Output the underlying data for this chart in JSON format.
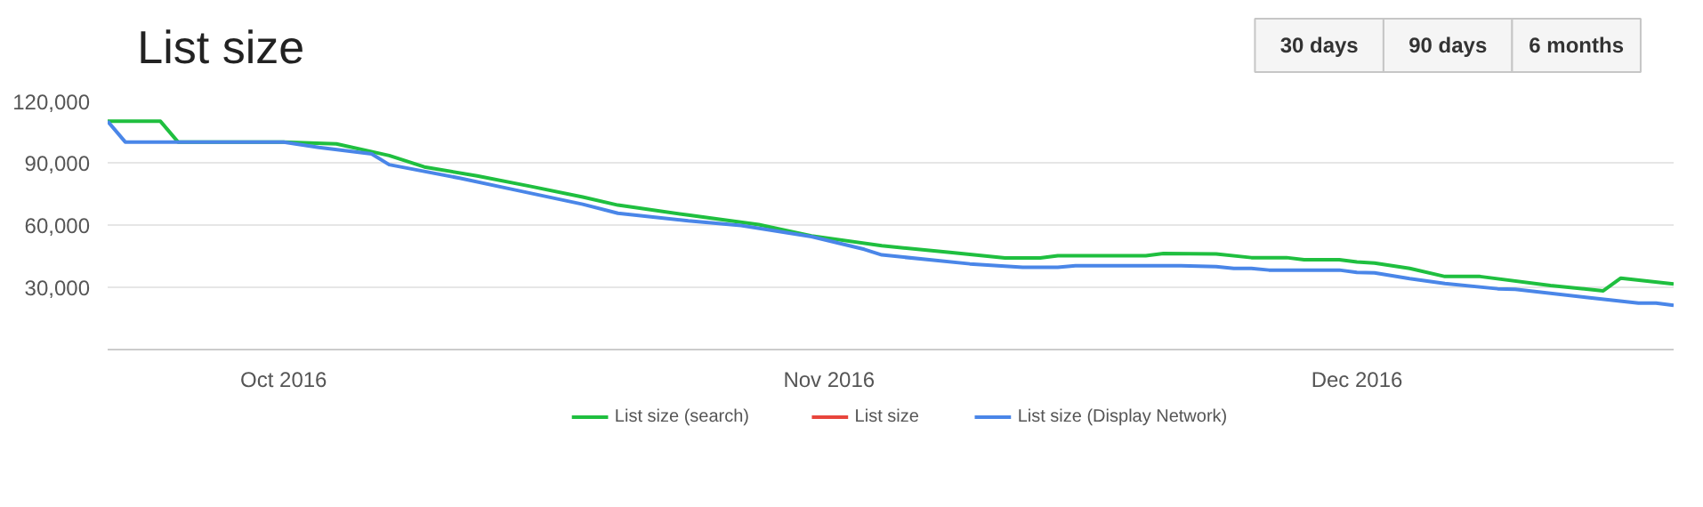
{
  "chart_data": {
    "type": "line",
    "title": "List size",
    "annotations": [
      "30 days",
      "90 days",
      "6 months"
    ],
    "xlim": [
      "2016-09-21",
      "2016-12-19"
    ],
    "xticks": [
      {
        "value": "2016-10-01",
        "label": "Oct 2016"
      },
      {
        "value": "2016-11-01",
        "label": "Nov 2016"
      },
      {
        "value": "2016-12-01",
        "label": "Dec 2016"
      }
    ],
    "ylim": [
      0,
      120000
    ],
    "yticks": [
      {
        "value": 0,
        "label": null
      },
      {
        "value": 30000,
        "label": "30,000"
      },
      {
        "value": 60000,
        "label": "60,000"
      },
      {
        "value": 90000,
        "label": "90,000"
      },
      {
        "value": 120000,
        "label": "120,000"
      }
    ],
    "grid": "y",
    "legend": "bottom",
    "marker": "none",
    "line_style": "solid",
    "series": [
      {
        "name": "List size (search)",
        "color": "#1fbf3f",
        "x": [
          "2016-09-21",
          "2016-09-24",
          "2016-09-25",
          "2016-10-01",
          "2016-10-04",
          "2016-10-07",
          "2016-10-09",
          "2016-10-12",
          "2016-10-15",
          "2016-10-18",
          "2016-10-20",
          "2016-10-24",
          "2016-10-28",
          "2016-10-31",
          "2016-11-04",
          "2016-11-08",
          "2016-11-11",
          "2016-11-13",
          "2016-11-14",
          "2016-11-19",
          "2016-11-20",
          "2016-11-23",
          "2016-11-25",
          "2016-11-27",
          "2016-11-28",
          "2016-11-30",
          "2016-12-01",
          "2016-12-02",
          "2016-12-04",
          "2016-12-06",
          "2016-12-08",
          "2016-12-12",
          "2016-12-15",
          "2016-12-16",
          "2016-12-19"
        ],
        "values": [
          110000,
          110000,
          100000,
          100000,
          99100,
          93500,
          88000,
          83700,
          78700,
          73500,
          69600,
          64800,
          60200,
          54800,
          50000,
          46700,
          44100,
          44100,
          45200,
          45200,
          46300,
          46100,
          44300,
          44300,
          43300,
          43300,
          42200,
          41700,
          39100,
          35200,
          35200,
          30900,
          28300,
          34400,
          31600
        ]
      },
      {
        "name": "List size",
        "color": "#e8453c"
      },
      {
        "name": "List size (Display Network)",
        "color": "#4a86e8",
        "x": [
          "2016-09-21",
          "2016-09-22",
          "2016-10-01",
          "2016-10-03",
          "2016-10-06",
          "2016-10-07",
          "2016-10-11",
          "2016-10-14",
          "2016-10-18",
          "2016-10-20",
          "2016-10-24",
          "2016-10-27",
          "2016-10-31",
          "2016-11-03",
          "2016-11-04",
          "2016-11-09",
          "2016-11-12",
          "2016-11-14",
          "2016-11-15",
          "2016-11-21",
          "2016-11-23",
          "2016-11-24",
          "2016-11-25",
          "2016-11-26",
          "2016-11-30",
          "2016-12-01",
          "2016-12-02",
          "2016-12-04",
          "2016-12-06",
          "2016-12-09",
          "2016-12-10",
          "2016-12-14",
          "2016-12-17",
          "2016-12-18",
          "2016-12-19"
        ],
        "values": [
          110000,
          100000,
          100000,
          97400,
          94300,
          89100,
          82600,
          77200,
          70000,
          65700,
          62000,
          59800,
          54400,
          48300,
          45600,
          41300,
          39600,
          39600,
          40400,
          40400,
          40000,
          39100,
          39100,
          38300,
          38300,
          37200,
          37000,
          34200,
          31800,
          29300,
          29000,
          25200,
          22400,
          22400,
          21300
        ]
      }
    ]
  }
}
